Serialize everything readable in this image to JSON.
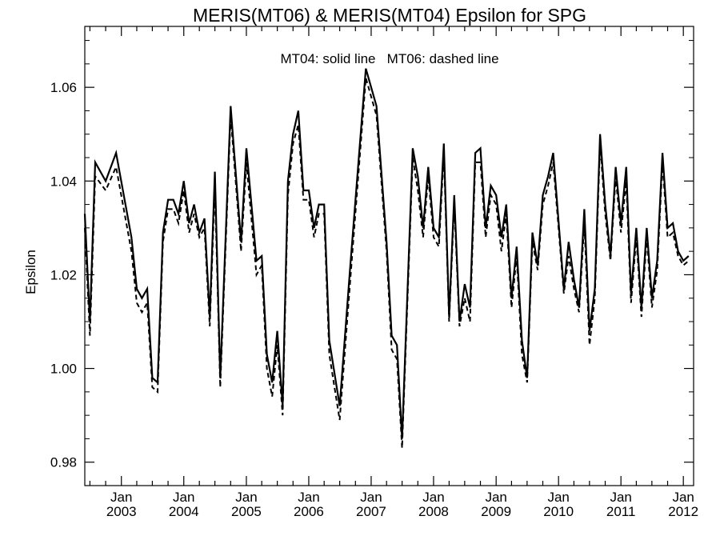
{
  "chart_data": {
    "type": "line",
    "title": "MERIS(MT06) & MERIS(MT04)  Epsilon for SPG",
    "annotation": "MT04: solid line   MT06: dashed line",
    "xlabel": "",
    "ylabel": "Epsilon",
    "x_range": [
      "2002-06-01",
      "2012-03-01"
    ],
    "ylim": [
      0.975,
      1.073
    ],
    "yticks": [
      0.98,
      1.0,
      1.02,
      1.04,
      1.06
    ],
    "ytick_labels": [
      "0.98",
      "1.00",
      "1.02",
      "1.04",
      "1.06"
    ],
    "xticks": [
      {
        "date": "2003-01-01",
        "month": "Jan",
        "year": "2003"
      },
      {
        "date": "2004-01-01",
        "month": "Jan",
        "year": "2004"
      },
      {
        "date": "2005-01-01",
        "month": "Jan",
        "year": "2005"
      },
      {
        "date": "2006-01-01",
        "month": "Jan",
        "year": "2006"
      },
      {
        "date": "2007-01-01",
        "month": "Jan",
        "year": "2007"
      },
      {
        "date": "2008-01-01",
        "month": "Jan",
        "year": "2008"
      },
      {
        "date": "2009-01-01",
        "month": "Jan",
        "year": "2009"
      },
      {
        "date": "2010-01-01",
        "month": "Jan",
        "year": "2010"
      },
      {
        "date": "2011-01-01",
        "month": "Jan",
        "year": "2011"
      },
      {
        "date": "2012-01-01",
        "month": "Jan",
        "year": "2012"
      }
    ],
    "grid": false,
    "series": [
      {
        "name": "MT04",
        "style": "solid",
        "color": "#000000",
        "points": [
          [
            "2002-06-01",
            1.033
          ],
          [
            "2002-07-01",
            1.01
          ],
          [
            "2002-08-01",
            1.044
          ],
          [
            "2002-10-01",
            1.04
          ],
          [
            "2002-12-01",
            1.046
          ],
          [
            "2003-03-01",
            1.028
          ],
          [
            "2003-04-01",
            1.017
          ],
          [
            "2003-05-01",
            1.015
          ],
          [
            "2003-06-01",
            1.017
          ],
          [
            "2003-07-01",
            0.998
          ],
          [
            "2003-08-01",
            0.997
          ],
          [
            "2003-09-01",
            1.029
          ],
          [
            "2003-10-01",
            1.036
          ],
          [
            "2003-11-01",
            1.036
          ],
          [
            "2003-12-01",
            1.033
          ],
          [
            "2004-01-01",
            1.04
          ],
          [
            "2004-02-01",
            1.031
          ],
          [
            "2004-03-01",
            1.035
          ],
          [
            "2004-04-01",
            1.029
          ],
          [
            "2004-05-01",
            1.032
          ],
          [
            "2004-06-01",
            1.011
          ],
          [
            "2004-07-01",
            1.042
          ],
          [
            "2004-08-01",
            0.998
          ],
          [
            "2004-10-01",
            1.056
          ],
          [
            "2004-12-01",
            1.027
          ],
          [
            "2005-01-01",
            1.047
          ],
          [
            "2005-03-01",
            1.023
          ],
          [
            "2005-04-01",
            1.024
          ],
          [
            "2005-05-01",
            1.003
          ],
          [
            "2005-06-01",
            0.997
          ],
          [
            "2005-07-01",
            1.008
          ],
          [
            "2005-08-01",
            0.992
          ],
          [
            "2005-09-01",
            1.04
          ],
          [
            "2005-10-01",
            1.05
          ],
          [
            "2005-11-01",
            1.055
          ],
          [
            "2005-12-01",
            1.038
          ],
          [
            "2006-01-01",
            1.038
          ],
          [
            "2006-02-01",
            1.03
          ],
          [
            "2006-03-01",
            1.035
          ],
          [
            "2006-04-01",
            1.035
          ],
          [
            "2006-05-01",
            1.006
          ],
          [
            "2006-07-01",
            0.992
          ],
          [
            "2006-09-01",
            1.022
          ],
          [
            "2006-12-01",
            1.064
          ],
          [
            "2007-02-01",
            1.056
          ],
          [
            "2007-04-01",
            1.027
          ],
          [
            "2007-05-01",
            1.007
          ],
          [
            "2007-06-01",
            1.005
          ],
          [
            "2007-07-01",
            0.985
          ],
          [
            "2007-09-01",
            1.047
          ],
          [
            "2007-10-01",
            1.041
          ],
          [
            "2007-11-01",
            1.03
          ],
          [
            "2007-12-01",
            1.043
          ],
          [
            "2008-01-01",
            1.03
          ],
          [
            "2008-02-01",
            1.028
          ],
          [
            "2008-03-01",
            1.048
          ],
          [
            "2008-04-01",
            1.011
          ],
          [
            "2008-05-01",
            1.037
          ],
          [
            "2008-06-01",
            1.01
          ],
          [
            "2008-07-01",
            1.018
          ],
          [
            "2008-08-01",
            1.013
          ],
          [
            "2008-09-01",
            1.046
          ],
          [
            "2008-10-01",
            1.047
          ],
          [
            "2008-11-01",
            1.03
          ],
          [
            "2008-12-01",
            1.039
          ],
          [
            "2009-01-01",
            1.037
          ],
          [
            "2009-02-01",
            1.028
          ],
          [
            "2009-03-01",
            1.035
          ],
          [
            "2009-04-01",
            1.015
          ],
          [
            "2009-05-01",
            1.026
          ],
          [
            "2009-06-01",
            1.006
          ],
          [
            "2009-07-01",
            0.998
          ],
          [
            "2009-08-01",
            1.029
          ],
          [
            "2009-09-01",
            1.022
          ],
          [
            "2009-10-01",
            1.037
          ],
          [
            "2009-11-01",
            1.041
          ],
          [
            "2009-12-01",
            1.046
          ],
          [
            "2010-02-01",
            1.017
          ],
          [
            "2010-03-01",
            1.027
          ],
          [
            "2010-04-01",
            1.019
          ],
          [
            "2010-05-01",
            1.013
          ],
          [
            "2010-06-01",
            1.034
          ],
          [
            "2010-07-01",
            1.008
          ],
          [
            "2010-08-01",
            1.017
          ],
          [
            "2010-09-01",
            1.05
          ],
          [
            "2010-10-01",
            1.035
          ],
          [
            "2010-11-01",
            1.024
          ],
          [
            "2010-12-01",
            1.043
          ],
          [
            "2011-01-01",
            1.031
          ],
          [
            "2011-02-01",
            1.043
          ],
          [
            "2011-03-01",
            1.016
          ],
          [
            "2011-04-01",
            1.03
          ],
          [
            "2011-05-01",
            1.013
          ],
          [
            "2011-06-01",
            1.03
          ],
          [
            "2011-07-01",
            1.015
          ],
          [
            "2011-08-01",
            1.023
          ],
          [
            "2011-09-01",
            1.046
          ],
          [
            "2011-10-01",
            1.03
          ],
          [
            "2011-11-01",
            1.031
          ],
          [
            "2011-12-01",
            1.025
          ],
          [
            "2012-01-01",
            1.023
          ],
          [
            "2012-02-01",
            1.024
          ]
        ]
      },
      {
        "name": "MT06",
        "style": "dashed",
        "color": "#000000",
        "points": [
          [
            "2002-06-01",
            1.03
          ],
          [
            "2002-07-01",
            1.007
          ],
          [
            "2002-08-01",
            1.041
          ],
          [
            "2002-10-01",
            1.038
          ],
          [
            "2002-12-01",
            1.043
          ],
          [
            "2003-03-01",
            1.025
          ],
          [
            "2003-04-01",
            1.014
          ],
          [
            "2003-05-01",
            1.012
          ],
          [
            "2003-06-01",
            1.014
          ],
          [
            "2003-07-01",
            0.996
          ],
          [
            "2003-08-01",
            0.995
          ],
          [
            "2003-09-01",
            1.027
          ],
          [
            "2003-10-01",
            1.034
          ],
          [
            "2003-11-01",
            1.034
          ],
          [
            "2003-12-01",
            1.031
          ],
          [
            "2004-01-01",
            1.038
          ],
          [
            "2004-02-01",
            1.029
          ],
          [
            "2004-03-01",
            1.033
          ],
          [
            "2004-04-01",
            1.028
          ],
          [
            "2004-05-01",
            1.03
          ],
          [
            "2004-06-01",
            1.009
          ],
          [
            "2004-07-01",
            1.039
          ],
          [
            "2004-08-01",
            0.996
          ],
          [
            "2004-10-01",
            1.054
          ],
          [
            "2004-12-01",
            1.025
          ],
          [
            "2005-01-01",
            1.044
          ],
          [
            "2005-03-01",
            1.02
          ],
          [
            "2005-04-01",
            1.022
          ],
          [
            "2005-05-01",
            1.0
          ],
          [
            "2005-06-01",
            0.994
          ],
          [
            "2005-07-01",
            1.005
          ],
          [
            "2005-08-01",
            0.99
          ],
          [
            "2005-09-01",
            1.037
          ],
          [
            "2005-10-01",
            1.048
          ],
          [
            "2005-11-01",
            1.052
          ],
          [
            "2005-12-01",
            1.036
          ],
          [
            "2006-01-01",
            1.036
          ],
          [
            "2006-02-01",
            1.028
          ],
          [
            "2006-03-01",
            1.033
          ],
          [
            "2006-04-01",
            1.033
          ],
          [
            "2006-05-01",
            1.003
          ],
          [
            "2006-07-01",
            0.989
          ],
          [
            "2006-09-01",
            1.019
          ],
          [
            "2006-12-01",
            1.062
          ],
          [
            "2007-02-01",
            1.054
          ],
          [
            "2007-04-01",
            1.025
          ],
          [
            "2007-05-01",
            1.004
          ],
          [
            "2007-06-01",
            1.002
          ],
          [
            "2007-07-01",
            0.983
          ],
          [
            "2007-09-01",
            1.045
          ],
          [
            "2007-10-01",
            1.038
          ],
          [
            "2007-11-01",
            1.028
          ],
          [
            "2007-12-01",
            1.041
          ],
          [
            "2008-01-01",
            1.028
          ],
          [
            "2008-02-01",
            1.026
          ],
          [
            "2008-03-01",
            1.046
          ],
          [
            "2008-04-01",
            1.01
          ],
          [
            "2008-05-01",
            1.035
          ],
          [
            "2008-06-01",
            1.009
          ],
          [
            "2008-07-01",
            1.015
          ],
          [
            "2008-08-01",
            1.01
          ],
          [
            "2008-09-01",
            1.044
          ],
          [
            "2008-10-01",
            1.044
          ],
          [
            "2008-11-01",
            1.028
          ],
          [
            "2008-12-01",
            1.037
          ],
          [
            "2009-01-01",
            1.035
          ],
          [
            "2009-02-01",
            1.025
          ],
          [
            "2009-03-01",
            1.033
          ],
          [
            "2009-04-01",
            1.013
          ],
          [
            "2009-05-01",
            1.024
          ],
          [
            "2009-06-01",
            1.003
          ],
          [
            "2009-07-01",
            0.997
          ],
          [
            "2009-08-01",
            1.027
          ],
          [
            "2009-09-01",
            1.021
          ],
          [
            "2009-10-01",
            1.035
          ],
          [
            "2009-11-01",
            1.039
          ],
          [
            "2009-12-01",
            1.044
          ],
          [
            "2010-02-01",
            1.016
          ],
          [
            "2010-03-01",
            1.024
          ],
          [
            "2010-04-01",
            1.017
          ],
          [
            "2010-05-01",
            1.012
          ],
          [
            "2010-06-01",
            1.031
          ],
          [
            "2010-07-01",
            1.005
          ],
          [
            "2010-08-01",
            1.015
          ],
          [
            "2010-09-01",
            1.048
          ],
          [
            "2010-10-01",
            1.033
          ],
          [
            "2010-11-01",
            1.023
          ],
          [
            "2010-12-01",
            1.041
          ],
          [
            "2011-01-01",
            1.029
          ],
          [
            "2011-02-01",
            1.04
          ],
          [
            "2011-03-01",
            1.014
          ],
          [
            "2011-04-01",
            1.028
          ],
          [
            "2011-05-01",
            1.011
          ],
          [
            "2011-06-01",
            1.028
          ],
          [
            "2011-07-01",
            1.013
          ],
          [
            "2011-08-01",
            1.021
          ],
          [
            "2011-09-01",
            1.044
          ],
          [
            "2011-10-01",
            1.028
          ],
          [
            "2011-11-01",
            1.029
          ],
          [
            "2011-12-01",
            1.024
          ],
          [
            "2012-01-01",
            1.022
          ],
          [
            "2012-02-01",
            1.023
          ]
        ]
      }
    ]
  }
}
